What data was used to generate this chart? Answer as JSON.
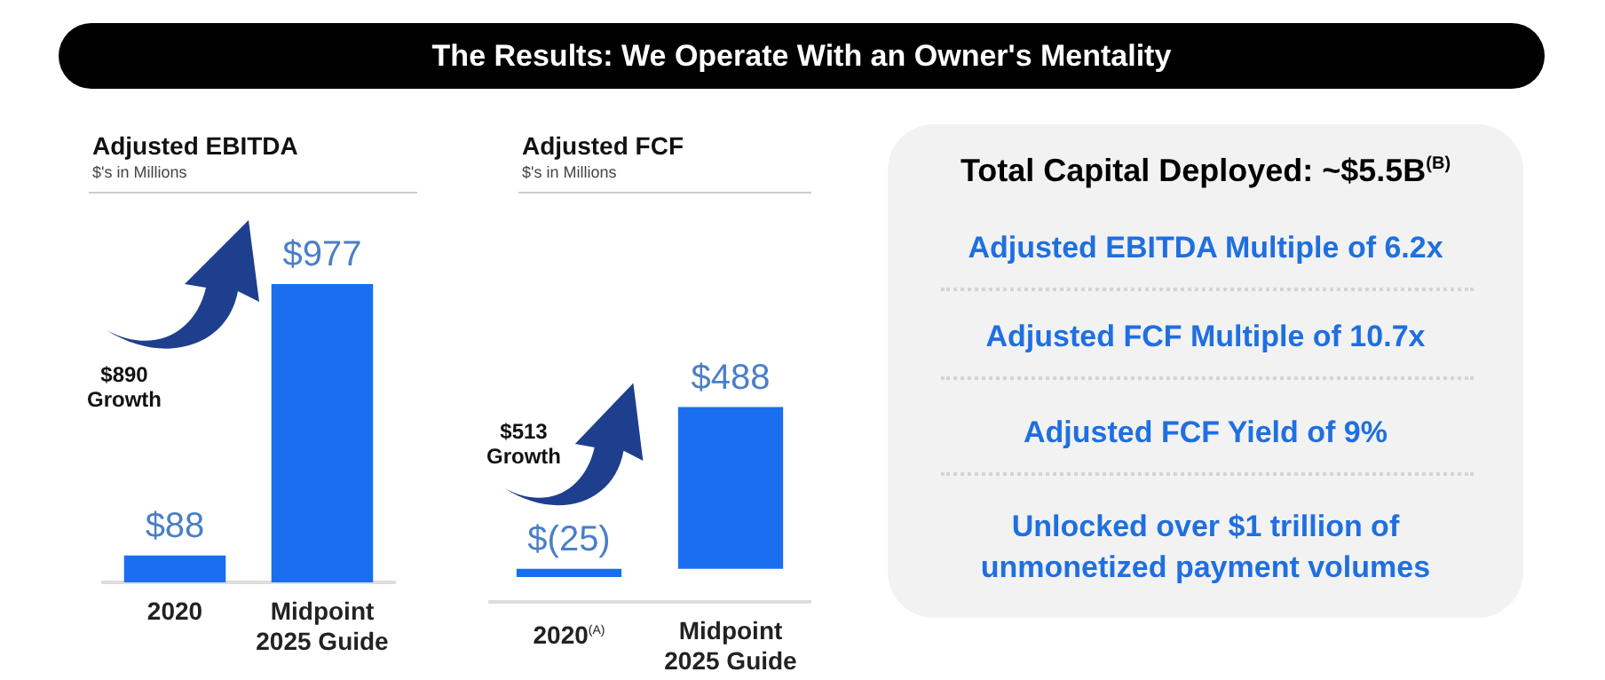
{
  "chart_data": [
    {
      "type": "other",
      "title": "The Results: We Operate With an Owner's Mentality"
    },
    {
      "type": "bar",
      "title": "Adjusted EBITDA",
      "subtitle": "$'s in Millions",
      "categories": [
        "2020",
        "Midpoint 2025 Guide"
      ],
      "values": [
        88,
        977
      ],
      "value_labels": [
        "$88",
        "$977"
      ],
      "color": "#1a6ff0",
      "annotations": [
        "$890 Growth"
      ]
    },
    {
      "type": "bar",
      "title": "Adjusted FCF",
      "subtitle": "$'s in Millions",
      "categories": [
        "2020$^{(A)}$",
        "Midpoint 2025 Guide"
      ],
      "values": [
        -25,
        488
      ],
      "value_labels": [
        "$(25)",
        "$488"
      ],
      "color": "#1a6ff0",
      "annotations": [
        "$513 Growth"
      ]
    },
    {
      "type": "other",
      "title": "Total Capital Deployed: ~$5.5B$^{(B)}$",
      "annotations": [
        "Adjusted EBITDA Multiple of 6.2x",
        "Adjusted FCF Multiple of 10.7x",
        "Adjusted FCF Yield of 9%",
        "Unlocked over $1 trillion of unmonetized payment volumes"
      ]
    }
  ]
}
